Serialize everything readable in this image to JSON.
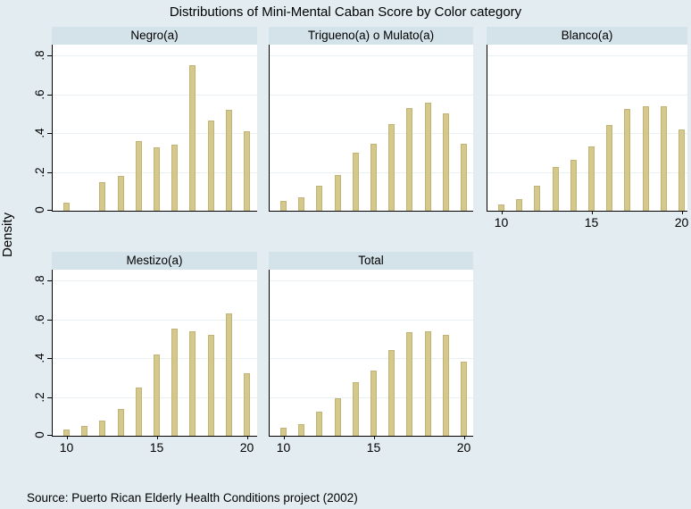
{
  "title": "Distributions of Mini-Mental Caban Score by Color category",
  "ylabel": "Density",
  "source_note": "Source: Puerto Rican Elderly Health Conditions project (2002)",
  "colors": {
    "background": "#e2ecf1",
    "panel_header_bg": "#d4e2ea",
    "plot_bg": "#ffffff",
    "gridline": "#e8f0f3",
    "bar_fill": "#d4c98b",
    "bar_edge": "#c0b377",
    "axis": "#000000"
  },
  "axis": {
    "xlim": [
      9.5,
      20.5
    ],
    "ylim": [
      0,
      0.855
    ],
    "x_tick_values": [
      10,
      15,
      20
    ],
    "x_tick_labels": [
      "10",
      "15",
      "20"
    ],
    "y_tick_values": [
      0,
      0.2,
      0.4,
      0.6,
      0.8
    ],
    "y_tick_labels": [
      "0",
      ".2",
      ".4",
      ".6",
      ".8"
    ],
    "grid": "horizontal"
  },
  "chart_data": [
    {
      "type": "bar",
      "title": "Negro(a)",
      "x": [
        10,
        12,
        13,
        14,
        15,
        16,
        17,
        18,
        19,
        20
      ],
      "values": [
        0.04,
        0.145,
        0.18,
        0.36,
        0.325,
        0.34,
        0.75,
        0.465,
        0.52,
        0.41
      ],
      "y_labeled": true,
      "x_labeled": false
    },
    {
      "type": "bar",
      "title": "Trigueno(a) o Mulato(a)",
      "x": [
        10,
        11,
        12,
        13,
        14,
        15,
        16,
        17,
        18,
        19,
        20
      ],
      "values": [
        0.05,
        0.07,
        0.13,
        0.185,
        0.3,
        0.345,
        0.445,
        0.53,
        0.555,
        0.5,
        0.345
      ],
      "y_labeled": false,
      "x_labeled": false
    },
    {
      "type": "bar",
      "title": "Blanco(a)",
      "x": [
        10,
        11,
        12,
        13,
        14,
        15,
        16,
        17,
        18,
        19,
        20
      ],
      "values": [
        0.03,
        0.06,
        0.13,
        0.225,
        0.26,
        0.33,
        0.44,
        0.525,
        0.54,
        0.54,
        0.42
      ],
      "y_labeled": false,
      "x_labeled": true
    },
    {
      "type": "bar",
      "title": "Mestizo(a)",
      "x": [
        10,
        11,
        12,
        13,
        14,
        15,
        16,
        17,
        18,
        19,
        20
      ],
      "values": [
        0.03,
        0.05,
        0.08,
        0.14,
        0.25,
        0.42,
        0.55,
        0.54,
        0.52,
        0.63,
        0.32
      ],
      "y_labeled": true,
      "x_labeled": true
    },
    {
      "type": "bar",
      "title": "Total",
      "x": [
        10,
        11,
        12,
        13,
        14,
        15,
        16,
        17,
        18,
        19,
        20
      ],
      "values": [
        0.04,
        0.06,
        0.125,
        0.195,
        0.275,
        0.335,
        0.44,
        0.535,
        0.54,
        0.52,
        0.38
      ],
      "y_labeled": false,
      "x_labeled": true
    }
  ]
}
